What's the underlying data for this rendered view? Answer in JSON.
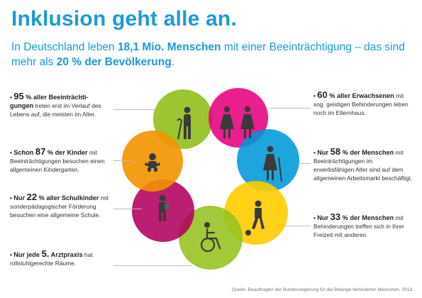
{
  "header": {
    "title": "Inklusion geht alle an.",
    "subtitle_part1": "In Deutschland leben ",
    "subtitle_bold1": "18,1 Mio. Menschen",
    "subtitle_part2": " mit einer Beeinträchtigung – das sind mehr als ",
    "subtitle_bold2": "20 % der Bevölkerung",
    "subtitle_part3": "."
  },
  "facts_left": [
    {
      "prefix": "",
      "number": "95",
      "lead": " % aller Beeinträchti-gungen",
      "rest": " treten erst im Verlauf des Lebens auf, die meisten im Alter."
    },
    {
      "prefix": "Schon ",
      "number": "87",
      "lead": " % der Kinder",
      "rest": " mit Beeinträchtigungen besuchen einen allgemeinen Kindergarten."
    },
    {
      "prefix": "Nur ",
      "number": "22",
      "lead": " % aller Schulkinder",
      "rest": " mit sonderpädagogischer Förderung besuchen eine allgemeine Schule."
    },
    {
      "prefix": "Nur jede ",
      "number": "5.",
      "lead": " Arztpraxis",
      "rest": " hat rollstuhlgerechte Räume."
    }
  ],
  "facts_right": [
    {
      "prefix": "",
      "number": "60",
      "lead": " % aller Erwachsenen",
      "rest": " mit sog. geistigen Behinderungen leben noch im Elternhaus."
    },
    {
      "prefix": "Nur ",
      "number": "58",
      "lead": " % der Menschen",
      "rest": " mit Beeinträchtigungen im erwerbsfähigen Alter sind auf dem allgemeinen Arbeitsmarkt beschäftigt."
    },
    {
      "prefix": "Nur ",
      "number": "33",
      "lead": " % der Menschen",
      "rest": " mit Behinderungen treffen sich in ihrer Freizeit mit anderen."
    }
  ],
  "circles": [
    {
      "color": "#94c11f",
      "icon": "elderly-person-with-cane-icon"
    },
    {
      "color": "#e6007e",
      "icon": "two-women-icon"
    },
    {
      "color": "#0099d8",
      "icon": "woman-with-crutch-icon"
    },
    {
      "color": "#ffcc00",
      "icon": "person-with-ball-icon"
    },
    {
      "color": "#94c11f",
      "icon": "wheelchair-user-icon"
    },
    {
      "color": "#b0005f",
      "icon": "child-with-backpack-icon"
    },
    {
      "color": "#f39200",
      "icon": "baby-icon"
    }
  ],
  "source": "Quelle: Beauftragter der Bundesregierung für die Belange behinderter Menschen, 2013."
}
